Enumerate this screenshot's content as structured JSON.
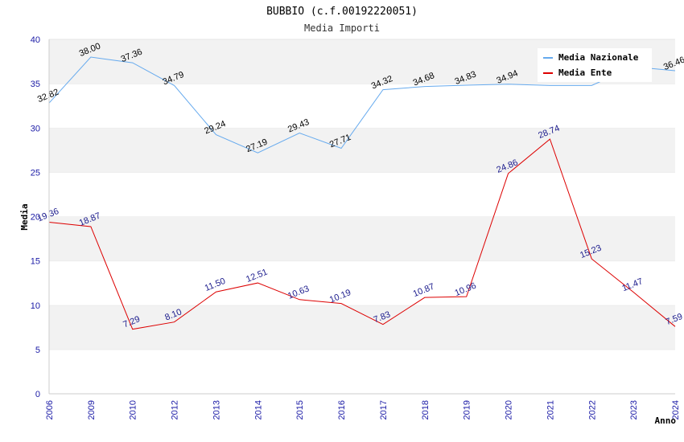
{
  "chart_data": {
    "type": "line",
    "title": "BUBBIO (c.f.00192220051)",
    "subtitle": "Media Importi",
    "xlabel": "Anno",
    "ylabel": "Media",
    "ylim": [
      0,
      40
    ],
    "yticks": [
      0,
      5,
      10,
      15,
      20,
      25,
      30,
      35,
      40
    ],
    "grid": true,
    "legend_position": "top-right",
    "categories": [
      "2006",
      "2009",
      "2010",
      "2012",
      "2013",
      "2014",
      "2015",
      "2016",
      "2017",
      "2018",
      "2019",
      "2020",
      "2021",
      "2022",
      "2023",
      "2024"
    ],
    "series": [
      {
        "name": "Media Nazionale",
        "color": "#66aaee",
        "label_color": "#000000",
        "values": [
          32.82,
          38.0,
          37.36,
          34.79,
          29.24,
          27.19,
          29.43,
          27.71,
          34.32,
          34.68,
          34.83,
          34.94,
          34.8,
          34.8,
          36.9,
          36.46
        ],
        "labels": [
          "32.82",
          "38.00",
          "37.36",
          "34.79",
          "29.24",
          "27.19",
          "29.43",
          "27.71",
          "34.32",
          "34.68",
          "34.83",
          "34.94",
          "",
          "",
          "",
          "36.46"
        ]
      },
      {
        "name": "Media Ente",
        "color": "#dd0000",
        "label_color": "#1a1a8c",
        "values": [
          19.36,
          18.87,
          7.29,
          8.1,
          11.5,
          12.51,
          10.63,
          10.19,
          7.83,
          10.87,
          10.96,
          24.86,
          28.74,
          15.23,
          11.47,
          7.59
        ],
        "labels": [
          "19.36",
          "18.87",
          "7.29",
          "8.10",
          "11.50",
          "12.51",
          "10.63",
          "10.19",
          "7.83",
          "10.87",
          "10.96",
          "24.86",
          "28.74",
          "15.23",
          "11.47",
          "7.59"
        ]
      }
    ]
  }
}
